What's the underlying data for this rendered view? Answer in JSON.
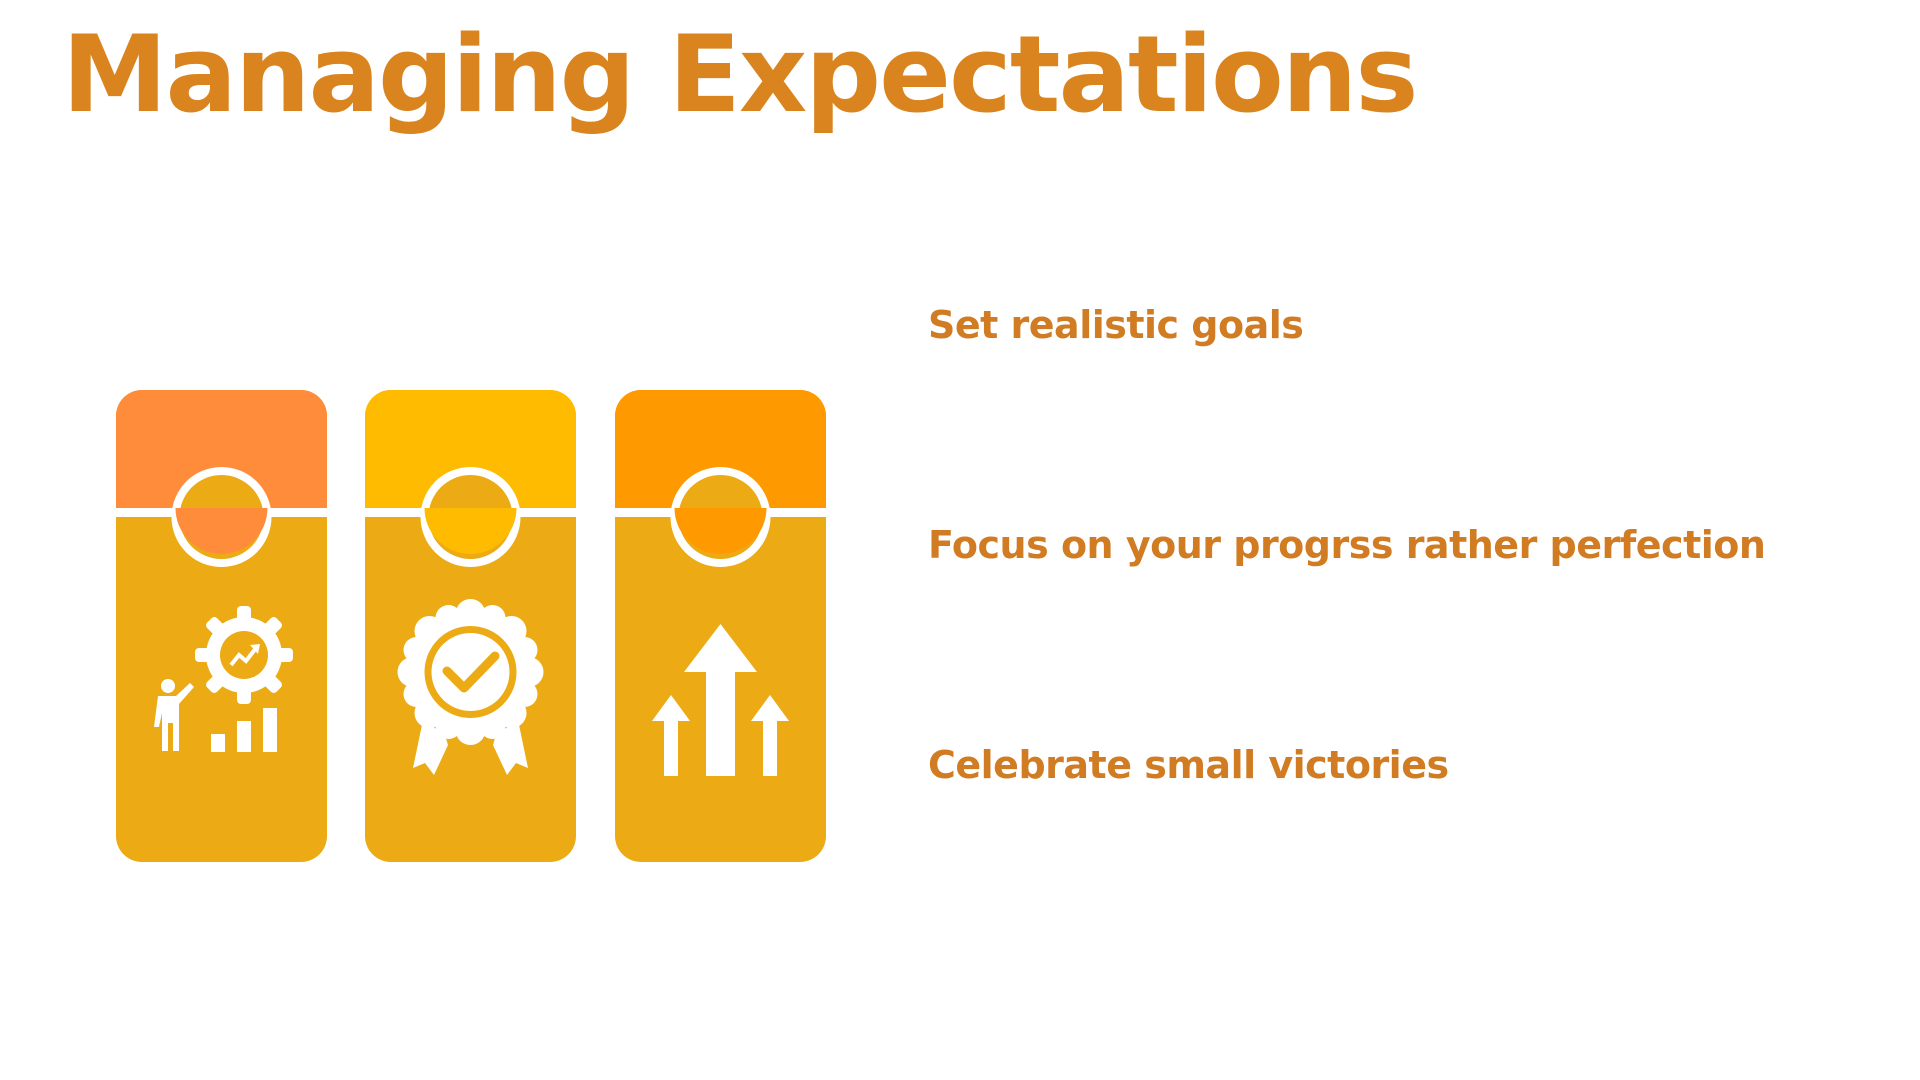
{
  "slide": {
    "title": "Managing Expectations",
    "points": [
      "Set realistic goals",
      "Focus on your progrss rather perfection",
      "Celebrate small victories"
    ]
  },
  "cards": [
    {
      "top_color": "#ff8c3a",
      "icon": "person-gear-growth-chart-icon"
    },
    {
      "top_color": "#ffbb00",
      "icon": "award-badge-checkmark-icon"
    },
    {
      "top_color": "#ff9900",
      "icon": "up-arrows-icon"
    }
  ],
  "colors": {
    "accent": "#d9841f",
    "card_body": "#ecaa14",
    "icon": "#ffffff"
  }
}
